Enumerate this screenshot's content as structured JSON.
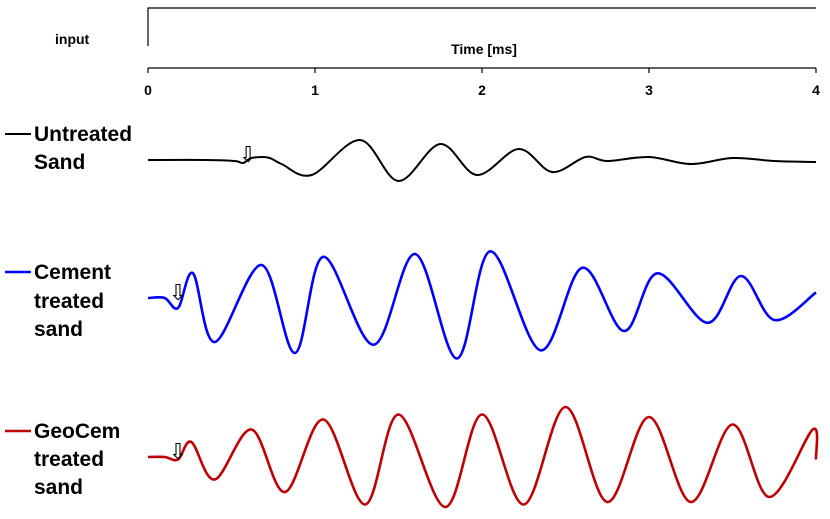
{
  "chart_data": {
    "type": "line",
    "input_label": "input",
    "xlabel": "Time [ms]",
    "xlim": [
      0,
      4
    ],
    "xticks": [
      "0",
      "1",
      "2",
      "3",
      "4"
    ],
    "input_signal": {
      "x": [
        0,
        0,
        4
      ],
      "y": [
        0,
        1,
        1
      ]
    },
    "arrow_symbol": "⇩",
    "series": [
      {
        "legend_lines": [
          "Untreated",
          "Sand"
        ],
        "color": "#000000",
        "onset_arrow_ms": 0.6,
        "x": [
          0,
          0.35,
          0.52,
          0.57,
          0.62,
          0.72,
          0.8,
          0.98,
          1.27,
          1.5,
          1.75,
          1.97,
          2.22,
          2.42,
          2.62,
          2.75,
          3.0,
          3.25,
          3.5,
          3.75,
          4.0
        ],
        "y": [
          0,
          0,
          -0.05,
          -0.15,
          0.1,
          0.12,
          -0.2,
          -0.75,
          1.0,
          -1.05,
          0.8,
          -0.75,
          0.55,
          -0.6,
          0.15,
          -0.05,
          0.15,
          -0.2,
          0.1,
          -0.05,
          -0.1
        ]
      },
      {
        "legend_lines": [
          "Cement",
          "treated",
          "sand"
        ],
        "color": "#0000ff",
        "onset_arrow_ms": 0.18,
        "x": [
          0,
          0.1,
          0.18,
          0.27,
          0.4,
          0.68,
          0.88,
          1.05,
          1.35,
          1.6,
          1.85,
          2.05,
          2.35,
          2.6,
          2.85,
          3.05,
          3.35,
          3.55,
          3.75,
          4.0
        ],
        "y": [
          0,
          0,
          -0.18,
          0.45,
          -0.8,
          0.6,
          -1.0,
          0.75,
          -0.85,
          0.8,
          -1.1,
          0.85,
          -0.95,
          0.55,
          -0.6,
          0.45,
          -0.45,
          0.4,
          -0.4,
          0.1
        ]
      },
      {
        "legend_lines": [
          "GeoCem",
          "treated",
          "sand"
        ],
        "color": "#c00000",
        "onset_arrow_ms": 0.18,
        "x": [
          0,
          0.1,
          0.18,
          0.26,
          0.4,
          0.62,
          0.82,
          1.05,
          1.3,
          1.5,
          1.78,
          2.0,
          2.25,
          2.5,
          2.75,
          3.0,
          3.25,
          3.5,
          3.72,
          3.98,
          4.0
        ],
        "y": [
          0,
          0,
          -0.05,
          0.3,
          -0.45,
          0.55,
          -0.7,
          0.75,
          -0.95,
          0.85,
          -1.0,
          0.85,
          -0.95,
          1.0,
          -0.9,
          0.8,
          -0.9,
          0.65,
          -0.8,
          0.55,
          -0.05
        ]
      }
    ]
  }
}
